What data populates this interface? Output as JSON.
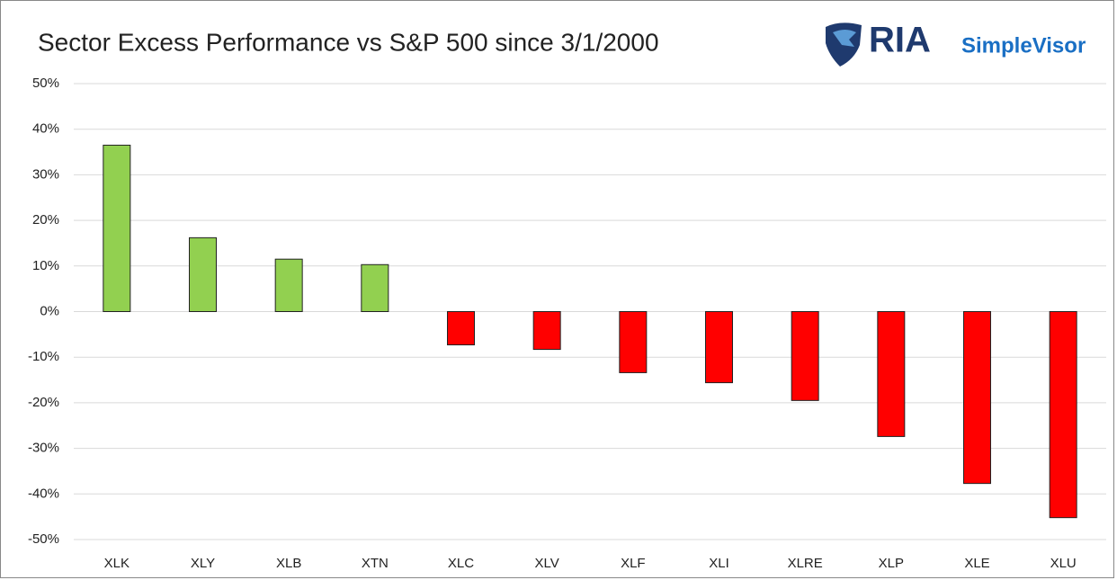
{
  "chart_data": {
    "type": "bar",
    "title": "Sector Excess Performance vs S&P 500 since 3/1/2000",
    "logo": {
      "brand": "RIA",
      "product": "SimpleVisor"
    },
    "categories": [
      "XLK",
      "XLY",
      "XLB",
      "XTN",
      "XLC",
      "XLV",
      "XLF",
      "XLI",
      "XLRE",
      "XLP",
      "XLE",
      "XLU"
    ],
    "values": [
      36.5,
      16.2,
      11.5,
      10.3,
      -7.3,
      -8.3,
      -13.4,
      -15.6,
      -19.5,
      -27.4,
      -37.7,
      -45.2
    ],
    "positive_color": "#92d050",
    "negative_color": "#ff0000",
    "ylim": [
      -50,
      50
    ],
    "yticks": [
      {
        "value": 50,
        "label": "50%"
      },
      {
        "value": 40,
        "label": "40%"
      },
      {
        "value": 30,
        "label": "30%"
      },
      {
        "value": 20,
        "label": "20%"
      },
      {
        "value": 10,
        "label": "10%"
      },
      {
        "value": 0,
        "label": "0%"
      },
      {
        "value": -10,
        "label": "-10%"
      },
      {
        "value": -20,
        "label": "-20%"
      },
      {
        "value": -30,
        "label": "-30%"
      },
      {
        "value": -40,
        "label": "-40%"
      },
      {
        "value": -50,
        "label": "-50%"
      }
    ],
    "grid": true
  }
}
